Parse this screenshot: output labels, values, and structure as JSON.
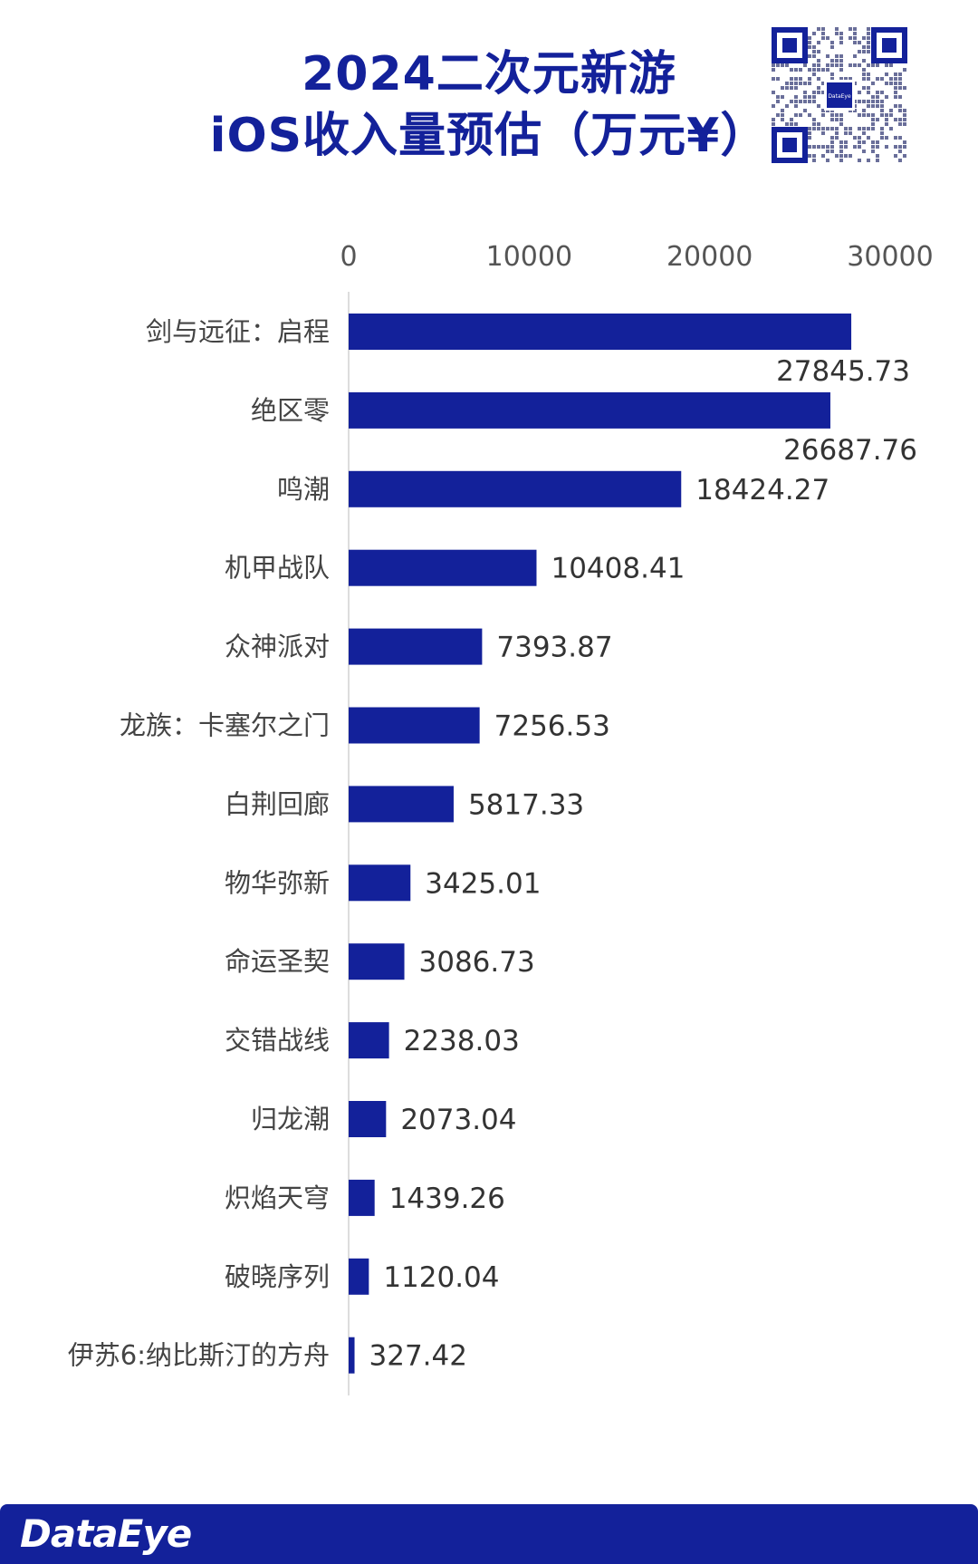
{
  "title": {
    "line1": "2024二次元新游",
    "line2": "iOS收入量预估（万元¥）"
  },
  "qr_center_label": "DataEye",
  "brand": "DataEye",
  "colors": {
    "bar": "#13219a",
    "brand": "#13219a",
    "axis": "#dddddd"
  },
  "chart_data": {
    "type": "bar",
    "orientation": "horizontal",
    "title": "2024二次元新游 iOS收入量预估（万元¥）",
    "xlim": [
      0,
      30000
    ],
    "ticks": [
      0,
      10000,
      20000,
      30000
    ],
    "tick_labels": [
      "0",
      "10000",
      "20000",
      "30000"
    ],
    "axis_position": "top",
    "grid": false,
    "categories": [
      "剑与远征：启程",
      "绝区零",
      "鸣潮",
      "机甲战队",
      "众神派对",
      "龙族：卡塞尔之门",
      "白荆回廊",
      "物华弥新",
      "命运圣契",
      "交错战线",
      "归龙潮",
      "炽焰天穹",
      "破晓序列",
      "伊苏6:纳比斯汀的方舟"
    ],
    "values": [
      27845.73,
      26687.76,
      18424.27,
      10408.41,
      7393.87,
      7256.53,
      5817.33,
      3425.01,
      3086.73,
      2238.03,
      2073.04,
      1439.26,
      1120.04,
      327.42
    ],
    "value_labels": [
      "27845.73",
      "26687.76",
      "18424.27",
      "10408.41",
      "7393.87",
      "7256.53",
      "5817.33",
      "3425.01",
      "3086.73",
      "2238.03",
      "2073.04",
      "1439.26",
      "1120.04",
      "327.42"
    ]
  }
}
